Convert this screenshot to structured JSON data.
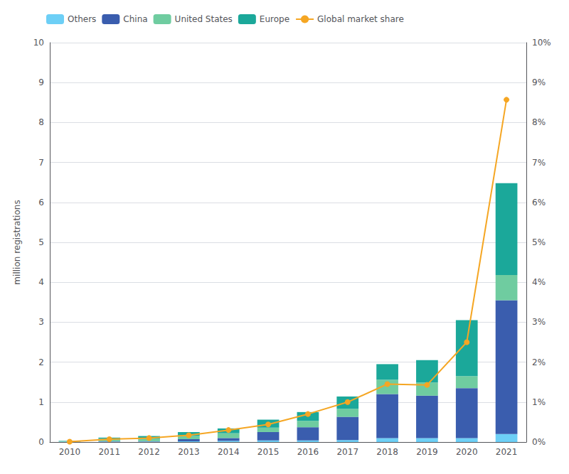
{
  "chart_data": {
    "type": "bar",
    "ylabel": "million registrations",
    "categories": [
      "2010",
      "2011",
      "2012",
      "2013",
      "2014",
      "2015",
      "2016",
      "2017",
      "2018",
      "2019",
      "2020",
      "2021"
    ],
    "stacked": true,
    "grid": true,
    "legend": "top-left",
    "ylim": [
      0,
      10
    ],
    "yticks": [
      0,
      1,
      2,
      3,
      4,
      5,
      6,
      7,
      8,
      9,
      10
    ],
    "y2lim": [
      0,
      10
    ],
    "y2ticks": [
      {
        "value": 0,
        "label": "0%"
      },
      {
        "value": 1,
        "label": "1%"
      },
      {
        "value": 2,
        "label": "2%"
      },
      {
        "value": 3,
        "label": "3%"
      },
      {
        "value": 4,
        "label": "4%"
      },
      {
        "value": 5,
        "label": "5%"
      },
      {
        "value": 6,
        "label": "6%"
      },
      {
        "value": 7,
        "label": "7%"
      },
      {
        "value": 8,
        "label": "8%"
      },
      {
        "value": 9,
        "label": "9%"
      },
      {
        "value": 10,
        "label": "10%"
      }
    ],
    "series": [
      {
        "name": "Others",
        "type": "bar",
        "color": "#6DCFF6",
        "values": [
          0.01,
          0.01,
          0.01,
          0.02,
          0.03,
          0.04,
          0.04,
          0.05,
          0.1,
          0.1,
          0.1,
          0.2
        ]
      },
      {
        "name": "China",
        "type": "bar",
        "color": "#3A5DAE",
        "values": [
          0.0,
          0.01,
          0.01,
          0.05,
          0.07,
          0.21,
          0.33,
          0.58,
          1.1,
          1.06,
          1.25,
          3.35
        ]
      },
      {
        "name": "United States",
        "type": "bar",
        "color": "#6FCCA0",
        "values": [
          0.01,
          0.06,
          0.07,
          0.08,
          0.12,
          0.11,
          0.16,
          0.2,
          0.36,
          0.33,
          0.3,
          0.63
        ]
      },
      {
        "name": "Europe",
        "type": "bar",
        "color": "#1BA89A",
        "values": [
          0.01,
          0.03,
          0.06,
          0.1,
          0.12,
          0.2,
          0.22,
          0.31,
          0.39,
          0.56,
          1.4,
          2.3
        ]
      },
      {
        "name": "Global market share",
        "type": "line",
        "axis": "y2",
        "color": "#F5A623",
        "marker": "circle",
        "values": [
          0.01,
          0.07,
          0.1,
          0.17,
          0.3,
          0.44,
          0.7,
          1.0,
          1.45,
          1.43,
          2.5,
          8.57
        ]
      }
    ]
  }
}
